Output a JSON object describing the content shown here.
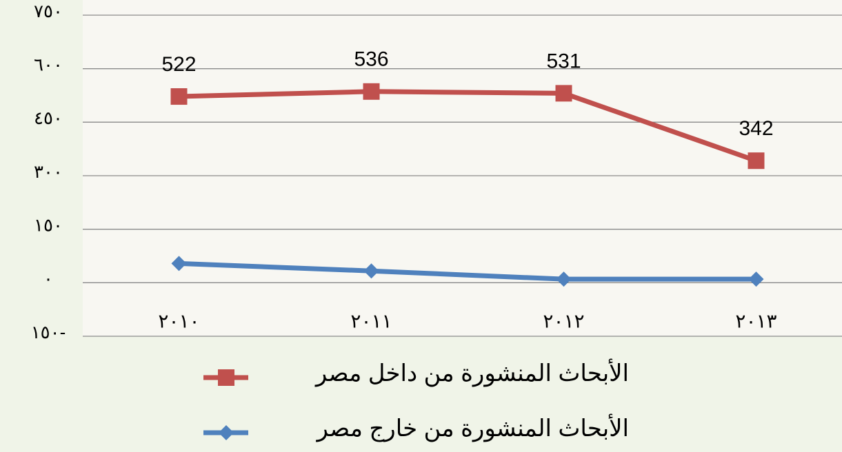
{
  "chart_data": {
    "type": "line",
    "categories": [
      "٢٠١٠",
      "٢٠١١",
      "٢٠١٢",
      "٢٠١٣"
    ],
    "series": [
      {
        "name": "الأبحاث المنشورة من داخل مصر",
        "color": "#c0504d",
        "marker": "square",
        "values": [
          522,
          536,
          531,
          342
        ],
        "data_labels": true
      },
      {
        "name": "الأبحاث المنشورة من خارج مصر",
        "color": "#4f81bd",
        "marker": "diamond",
        "values": [
          54,
          33,
          10,
          10
        ],
        "data_labels": false
      }
    ],
    "ylim": [
      -150,
      750
    ],
    "yticks": [
      {
        "value": -150,
        "label": "١٥٠-"
      },
      {
        "value": 0,
        "label": "٠"
      },
      {
        "value": 150,
        "label": "١٥٠"
      },
      {
        "value": 300,
        "label": "٣٠٠"
      },
      {
        "value": 450,
        "label": "٤٥٠"
      },
      {
        "value": 600,
        "label": "٦٠٠"
      },
      {
        "value": 750,
        "label": "٧٥٠"
      }
    ],
    "grid": true,
    "legend": "bottom"
  }
}
